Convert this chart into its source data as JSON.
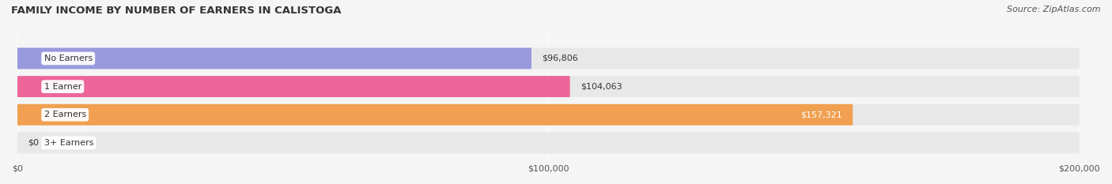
{
  "title": "FAMILY INCOME BY NUMBER OF EARNERS IN CALISTOGA",
  "source": "Source: ZipAtlas.com",
  "categories": [
    "No Earners",
    "1 Earner",
    "2 Earners",
    "3+ Earners"
  ],
  "values": [
    96806,
    104063,
    157321,
    0
  ],
  "bar_colors": [
    "#9999dd",
    "#ee6699",
    "#f0a050",
    "#f08080"
  ],
  "bar_bg_color": "#e8e8e8",
  "label_colors": [
    "#333333",
    "#333333",
    "#ffffff",
    "#333333"
  ],
  "max_value": 200000,
  "figsize": [
    14.06,
    2.33
  ],
  "dpi": 100,
  "background_color": "#f5f5f5",
  "title_color": "#333333",
  "title_fontsize": 9.5,
  "source_fontsize": 8,
  "tick_fontsize": 8,
  "label_fontsize": 8,
  "category_fontsize": 8
}
